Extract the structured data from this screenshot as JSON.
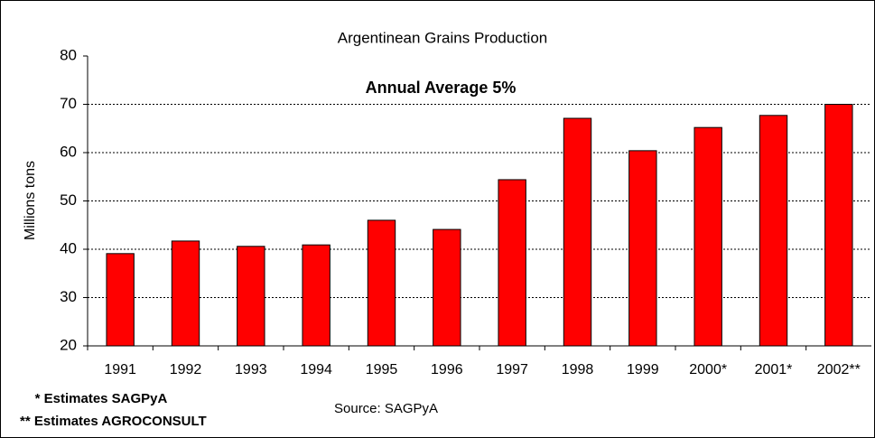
{
  "chart_data": {
    "type": "bar",
    "title": "Argentinean Grains Production",
    "annotation": "Annual Average 5%",
    "y_label": "Millions tons",
    "categories": [
      "1991",
      "1992",
      "1993",
      "1994",
      "1995",
      "1996",
      "1997",
      "1998",
      "1999",
      "2000*",
      "2001*",
      "2002**"
    ],
    "values": [
      39.1,
      41.7,
      40.6,
      40.9,
      46.0,
      44.1,
      54.4,
      67.1,
      60.4,
      65.2,
      67.7,
      70.0
    ],
    "color": "#ff0000",
    "ylim": [
      20,
      80
    ],
    "yticks": [
      20,
      30,
      40,
      50,
      60,
      70,
      80
    ],
    "grid": true,
    "footnotes": [
      "* Estimates SAGPyA",
      "** Estimates AGROCONSULT"
    ],
    "source": "Source: SAGPyA"
  }
}
